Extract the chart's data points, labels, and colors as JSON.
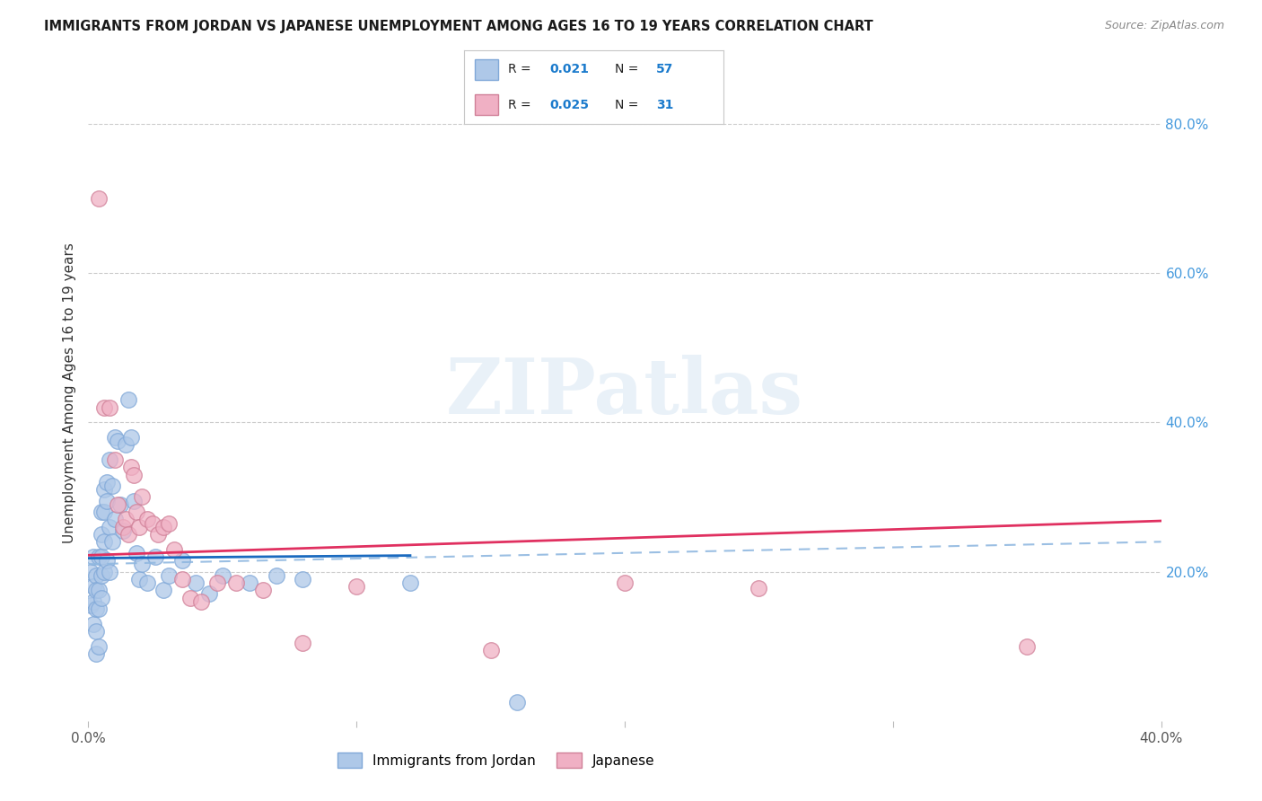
{
  "title": "IMMIGRANTS FROM JORDAN VS JAPANESE UNEMPLOYMENT AMONG AGES 16 TO 19 YEARS CORRELATION CHART",
  "source": "Source: ZipAtlas.com",
  "ylabel": "Unemployment Among Ages 16 to 19 years",
  "xlim": [
    0.0,
    0.4
  ],
  "ylim": [
    0.0,
    0.88
  ],
  "right_yticks": [
    0.2,
    0.4,
    0.6,
    0.8
  ],
  "right_yticklabels": [
    "20.0%",
    "40.0%",
    "60.0%",
    "80.0%"
  ],
  "jordan_color": "#aec8e8",
  "japanese_color": "#f0b0c4",
  "jordan_edge": "#80a8d8",
  "japanese_edge": "#d08098",
  "trendline_jordan_solid": "#1a6abf",
  "trendline_jordan_dashed_color": "#90b8e0",
  "trendline_japanese": "#e03060",
  "watermark_text": "ZIPatlas",
  "legend_label1": "Immigrants from Jordan",
  "legend_label2": "Japanese",
  "jordan_x": [
    0.001,
    0.001,
    0.002,
    0.002,
    0.002,
    0.002,
    0.003,
    0.003,
    0.003,
    0.003,
    0.003,
    0.004,
    0.004,
    0.004,
    0.004,
    0.005,
    0.005,
    0.005,
    0.005,
    0.005,
    0.006,
    0.006,
    0.006,
    0.006,
    0.007,
    0.007,
    0.007,
    0.008,
    0.008,
    0.008,
    0.009,
    0.009,
    0.01,
    0.01,
    0.011,
    0.012,
    0.013,
    0.014,
    0.015,
    0.016,
    0.017,
    0.018,
    0.019,
    0.02,
    0.022,
    0.025,
    0.028,
    0.03,
    0.035,
    0.04,
    0.045,
    0.05,
    0.06,
    0.07,
    0.08,
    0.12,
    0.16
  ],
  "jordan_y": [
    0.2,
    0.155,
    0.22,
    0.18,
    0.16,
    0.13,
    0.195,
    0.175,
    0.15,
    0.12,
    0.09,
    0.22,
    0.175,
    0.15,
    0.1,
    0.28,
    0.25,
    0.22,
    0.195,
    0.165,
    0.31,
    0.28,
    0.24,
    0.2,
    0.32,
    0.295,
    0.215,
    0.35,
    0.26,
    0.2,
    0.315,
    0.24,
    0.38,
    0.27,
    0.375,
    0.29,
    0.255,
    0.37,
    0.43,
    0.38,
    0.295,
    0.225,
    0.19,
    0.21,
    0.185,
    0.22,
    0.175,
    0.195,
    0.215,
    0.185,
    0.17,
    0.195,
    0.185,
    0.195,
    0.19,
    0.185,
    0.025
  ],
  "japanese_x": [
    0.004,
    0.006,
    0.008,
    0.01,
    0.011,
    0.013,
    0.014,
    0.015,
    0.016,
    0.017,
    0.018,
    0.019,
    0.02,
    0.022,
    0.024,
    0.026,
    0.028,
    0.03,
    0.032,
    0.035,
    0.038,
    0.042,
    0.048,
    0.055,
    0.065,
    0.08,
    0.1,
    0.15,
    0.2,
    0.25,
    0.35
  ],
  "japanese_y": [
    0.7,
    0.42,
    0.42,
    0.35,
    0.29,
    0.26,
    0.27,
    0.25,
    0.34,
    0.33,
    0.28,
    0.26,
    0.3,
    0.27,
    0.265,
    0.25,
    0.26,
    0.265,
    0.23,
    0.19,
    0.165,
    0.16,
    0.185,
    0.185,
    0.175,
    0.105,
    0.18,
    0.095,
    0.185,
    0.178,
    0.1
  ],
  "trendline_jordan_x0": 0.0,
  "trendline_jordan_x1": 0.4,
  "trendline_jordan_y0_solid": 0.218,
  "trendline_jordan_y1_solid": 0.23,
  "trendline_jordan_y0_dashed": 0.21,
  "trendline_jordan_y1_dashed": 0.24,
  "trendline_japanese_y0": 0.222,
  "trendline_japanese_y1": 0.268
}
